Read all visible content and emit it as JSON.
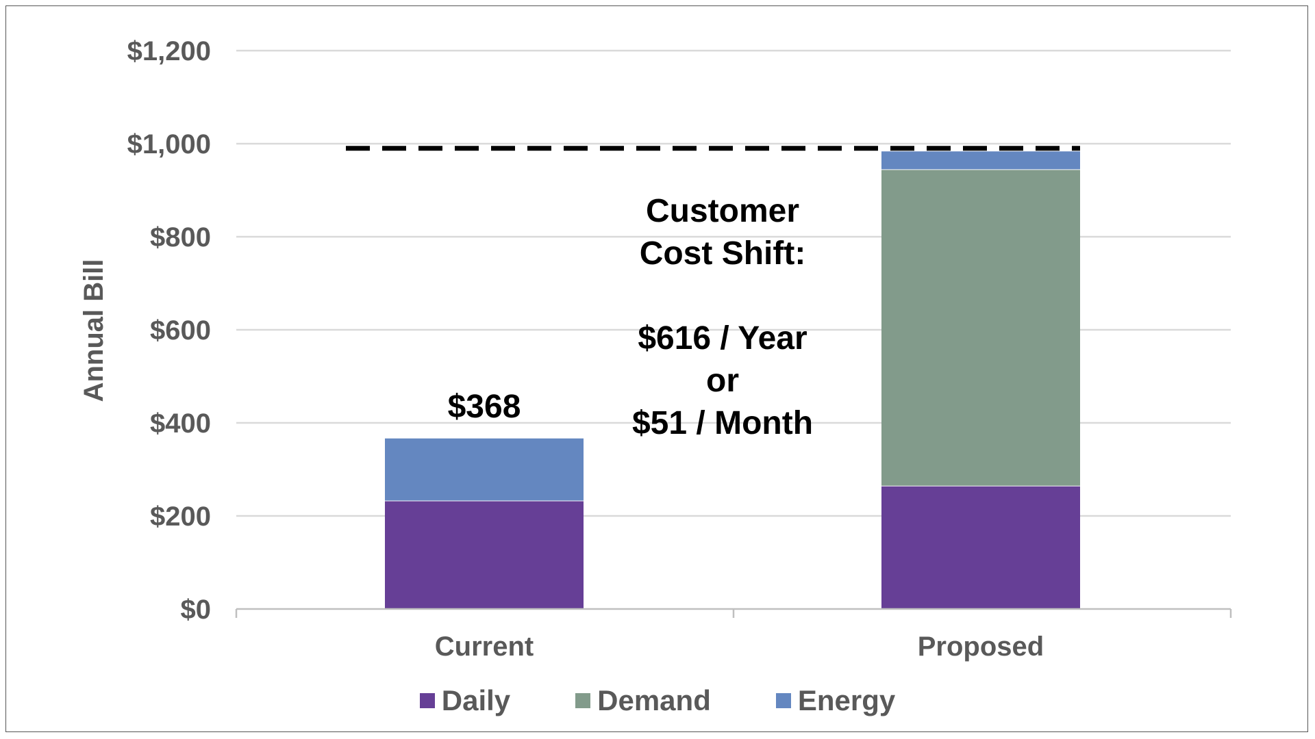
{
  "chart_data": {
    "type": "bar",
    "stacked": true,
    "categories": [
      "Current",
      "Proposed"
    ],
    "series": [
      {
        "name": "Daily",
        "values": [
          233,
          265
        ],
        "color": "#663f96"
      },
      {
        "name": "Demand",
        "values": [
          0,
          680
        ],
        "color": "#829b8b"
      },
      {
        "name": "Energy",
        "values": [
          135,
          40
        ],
        "color": "#6487c0"
      }
    ],
    "ylabel": "Annual Bill",
    "ylim": [
      0,
      1200
    ],
    "yticks": [
      0,
      200,
      400,
      600,
      800,
      1000,
      1200
    ],
    "ytick_labels": [
      "$0",
      "$200",
      "$400",
      "$600",
      "$800",
      "$1,000",
      "$1,200"
    ],
    "grid": true,
    "legend_position": "bottom",
    "data_labels": [
      {
        "category": "Current",
        "text": "$368"
      }
    ],
    "reference_line": {
      "value": 990,
      "style": "dashed",
      "color": "#000000"
    },
    "annotation": [
      "Customer",
      "Cost Shift:",
      "",
      "$616 / Year",
      "or",
      "$51 / Month"
    ]
  }
}
